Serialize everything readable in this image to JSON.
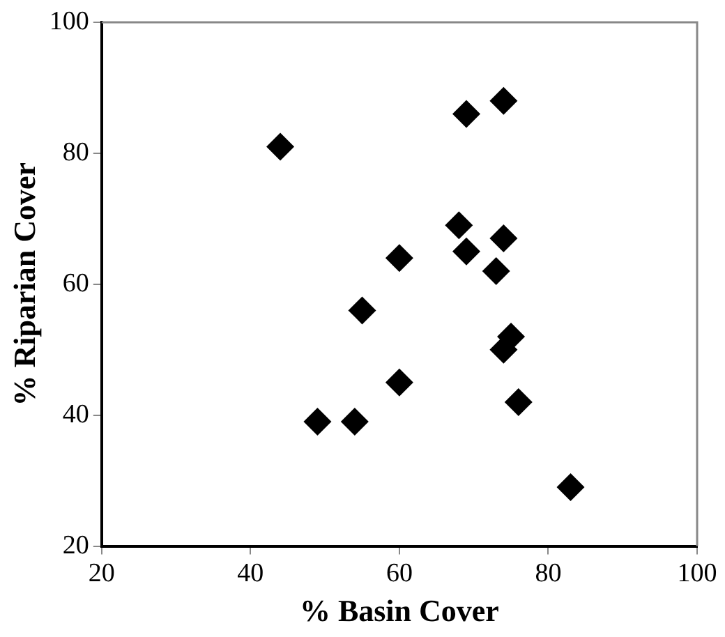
{
  "chart_data": {
    "type": "scatter",
    "xlabel": "% Basin Cover",
    "ylabel": "% Riparian Cover",
    "x": [
      44,
      69,
      74,
      68,
      74,
      69,
      73,
      60,
      55,
      75,
      74,
      60,
      76,
      49,
      54,
      83
    ],
    "values": [
      81,
      86,
      88,
      69,
      67,
      65,
      62,
      64,
      56,
      52,
      50,
      45,
      42,
      39,
      39,
      29
    ],
    "color": "#000000",
    "marker": "diamond",
    "xlim": [
      20,
      100
    ],
    "xticks": [
      20,
      40,
      60,
      80,
      100
    ],
    "ylim": [
      20,
      100
    ],
    "yticks": [
      20,
      40,
      60,
      80,
      100
    ],
    "grid": false,
    "legend": false
  }
}
